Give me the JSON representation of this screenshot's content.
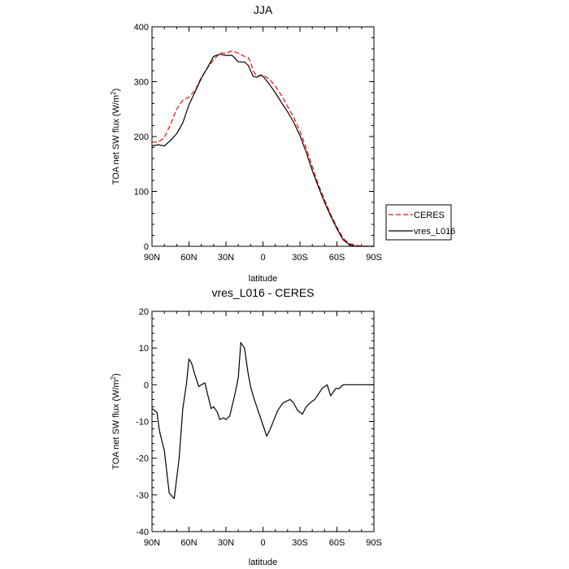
{
  "chart_data": [
    {
      "type": "line",
      "title": "JJA",
      "xlabel": "latitude",
      "ylabel": "TOA net SW flux (W/m",
      "ylabel_sup": "2",
      "ylabel_close": ")",
      "xlim": [
        90,
        -90
      ],
      "ylim": [
        0,
        400
      ],
      "xticks": [
        90,
        60,
        30,
        0,
        -30,
        -60,
        -90
      ],
      "xtick_labels": [
        "90N",
        "60N",
        "30N",
        "0",
        "30S",
        "60S",
        "90S"
      ],
      "yticks": [
        0,
        100,
        200,
        300,
        400
      ],
      "ytick_labels": [
        "0",
        "100",
        "200",
        "300",
        "400"
      ],
      "legend": {
        "placement": "right",
        "entries": [
          {
            "name": "CERES",
            "color": "#ff0000",
            "dash": "dashed"
          },
          {
            "name": "vres_L016",
            "color": "#000000",
            "dash": "solid"
          }
        ]
      },
      "series": [
        {
          "name": "CERES",
          "color": "#ff0000",
          "dash": "dashed",
          "x": [
            90,
            85,
            80,
            75,
            70,
            65,
            60,
            55,
            50,
            45,
            40,
            35,
            30,
            25,
            20,
            15,
            12,
            10,
            8,
            5,
            2,
            0,
            -5,
            -10,
            -15,
            -20,
            -25,
            -30,
            -35,
            -40,
            -45,
            -50,
            -55,
            -60,
            -65,
            -70,
            -75,
            -80,
            -85,
            -90
          ],
          "y": [
            190,
            190,
            198,
            222,
            250,
            266,
            272,
            284,
            308,
            325,
            340,
            352,
            352,
            356,
            352,
            346,
            344,
            336,
            320,
            310,
            312,
            312,
            305,
            292,
            275,
            255,
            235,
            210,
            180,
            145,
            112,
            85,
            58,
            35,
            15,
            5,
            2,
            0,
            0,
            0
          ]
        },
        {
          "name": "vres_L016",
          "color": "#000000",
          "dash": "solid",
          "x": [
            90,
            85,
            80,
            75,
            70,
            65,
            60,
            55,
            50,
            45,
            40,
            35,
            30,
            25,
            20,
            15,
            12,
            10,
            8,
            5,
            2,
            0,
            -5,
            -10,
            -15,
            -20,
            -25,
            -30,
            -35,
            -40,
            -45,
            -50,
            -55,
            -60,
            -65,
            -70,
            -75,
            -80,
            -85,
            -90
          ],
          "y": [
            183,
            185,
            183,
            193,
            205,
            225,
            258,
            282,
            306,
            326,
            346,
            350,
            348,
            348,
            336,
            336,
            330,
            320,
            310,
            308,
            312,
            310,
            296,
            280,
            262,
            245,
            226,
            202,
            172,
            138,
            108,
            80,
            55,
            32,
            12,
            3,
            0,
            0,
            0,
            0
          ]
        }
      ]
    },
    {
      "type": "line",
      "title": "vres_L016 - CERES",
      "xlabel": "latitude",
      "ylabel": "TOA net SW flux (W/m",
      "ylabel_sup": "2",
      "ylabel_close": ")",
      "xlim": [
        90,
        -90
      ],
      "ylim": [
        -40,
        20
      ],
      "xticks": [
        90,
        60,
        30,
        0,
        -30,
        -60,
        -90
      ],
      "xtick_labels": [
        "90N",
        "60N",
        "30N",
        "0",
        "30S",
        "60S",
        "90S"
      ],
      "yticks": [
        20,
        10,
        0,
        -10,
        -20,
        -30,
        -40
      ],
      "ytick_labels": [
        "20",
        "10",
        "0",
        "-10",
        "-20",
        "-30",
        "-40"
      ],
      "series": [
        {
          "name": "vres_L016 - CERES",
          "color": "#000000",
          "dash": "solid",
          "x": [
            90,
            86,
            84,
            80,
            76,
            72,
            68,
            65,
            62,
            60,
            58,
            55,
            52,
            50,
            47,
            45,
            42,
            40,
            37,
            35,
            32,
            30,
            27,
            23,
            20,
            18,
            15,
            12,
            10,
            8,
            6,
            4,
            2,
            0,
            -3,
            -6,
            -9,
            -12,
            -16,
            -19,
            -22,
            -25,
            -28,
            -32,
            -35,
            -38,
            -42,
            -45,
            -48,
            -52,
            -55,
            -59,
            -62,
            -65,
            -67,
            -68,
            -70,
            -72,
            -74,
            -76,
            -80,
            -85,
            -90
          ],
          "y": [
            -6.5,
            -7.5,
            -12.5,
            -18,
            -29.5,
            -31,
            -20,
            -6.5,
            0.5,
            7,
            6,
            2.5,
            -0.5,
            0,
            0.5,
            -2.5,
            -6.5,
            -6,
            -7.5,
            -9.5,
            -9,
            -9.5,
            -8.5,
            -3,
            2,
            11.5,
            10,
            3,
            -0.5,
            -3,
            -5,
            -7,
            -9,
            -11,
            -14,
            -12,
            -9.5,
            -7,
            -5,
            -4.5,
            -4,
            -5,
            -7,
            -8,
            -6,
            -5,
            -4,
            -2.5,
            -1,
            0,
            -3,
            -1,
            -1,
            0,
            0,
            0,
            0,
            0,
            0,
            0,
            0,
            0,
            0
          ]
        }
      ]
    }
  ]
}
